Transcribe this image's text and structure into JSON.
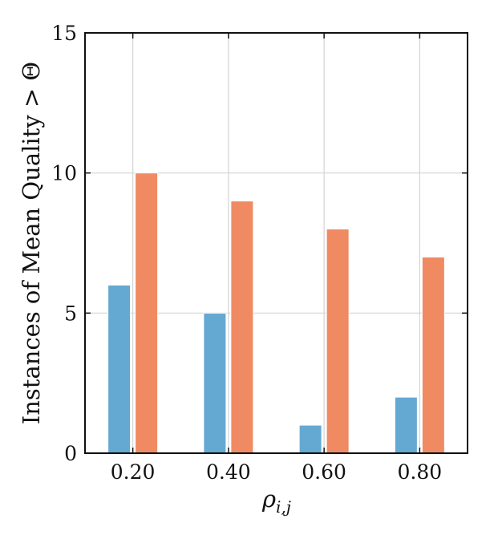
{
  "chart_data": {
    "type": "bar",
    "categories": [
      "0.20",
      "0.40",
      "0.60",
      "0.80"
    ],
    "series": [
      {
        "values": [
          6,
          5,
          1,
          2
        ],
        "color": "#64a9d2"
      },
      {
        "values": [
          10,
          9,
          8,
          7
        ],
        "color": "#ef8a62"
      }
    ],
    "xlabel": "ρi,j",
    "xlabel_parts": {
      "base": "ρ",
      "sub": "i,j"
    },
    "ylabel": "Instances of Mean Quality > Θ",
    "ylim": [
      0,
      15
    ],
    "yticks": [
      "0",
      "5",
      "10",
      "15"
    ],
    "grid": true,
    "legend": "none"
  }
}
